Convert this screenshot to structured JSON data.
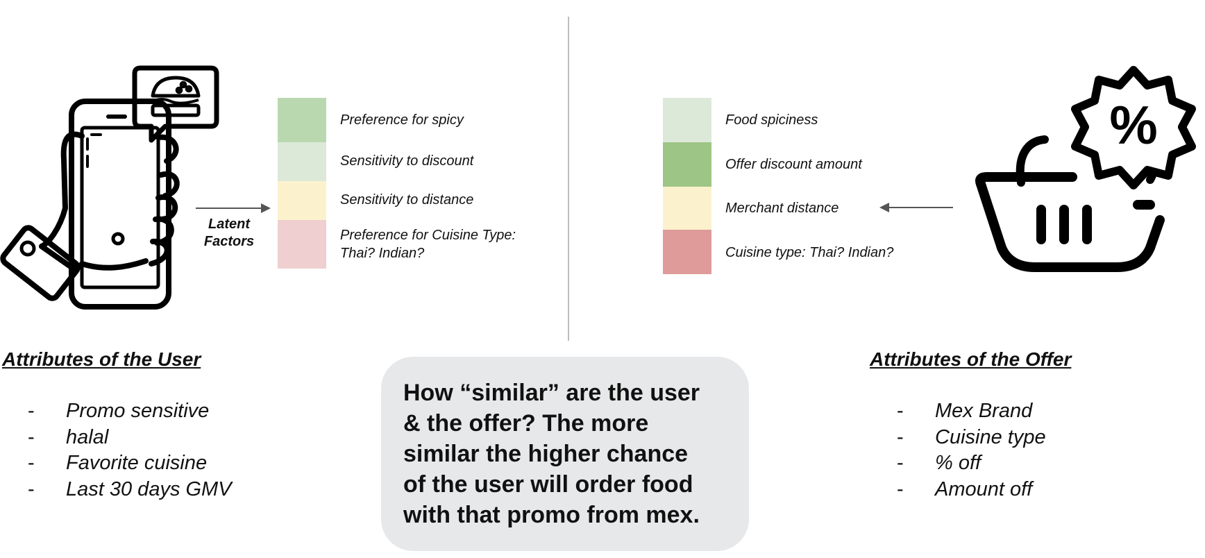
{
  "latent_label": "Latent\nFactors",
  "user_factors": [
    {
      "label": "Preference for spicy",
      "color": "#bad8b0"
    },
    {
      "label": "Sensitivity to discount",
      "color": "#dde9d8"
    },
    {
      "label": "Sensitivity to distance",
      "color": "#fbf2cd"
    },
    {
      "label": "Preference for Cuisine Type:\nThai? Indian?",
      "color": "#efcfcf"
    }
  ],
  "offer_factors": [
    {
      "label": "Food spiciness",
      "color": "#dde9d8"
    },
    {
      "label": "Offer discount amount",
      "color": "#9dc586"
    },
    {
      "label": "Merchant distance",
      "color": "#fbf2cd"
    },
    {
      "label": "Cuisine type: Thai? Indian?",
      "color": "#df9b99"
    }
  ],
  "user_attributes": {
    "heading": "Attributes of the User",
    "items": [
      "Promo sensitive",
      "halal",
      "Favorite cuisine",
      "Last 30 days GMV"
    ]
  },
  "offer_attributes": {
    "heading": "Attributes of the Offer",
    "items": [
      "Mex Brand",
      "Cuisine type",
      "% off",
      "Amount off"
    ]
  },
  "question": "How “similar” are the user\n& the offer? The more\nsimilar the higher chance\nof the user will order food\nwith that promo from mex.",
  "icons": {
    "user": "hand-holding-phone-icon",
    "burger": "burger-icon",
    "offer": "shopping-basket-discount-icon"
  }
}
